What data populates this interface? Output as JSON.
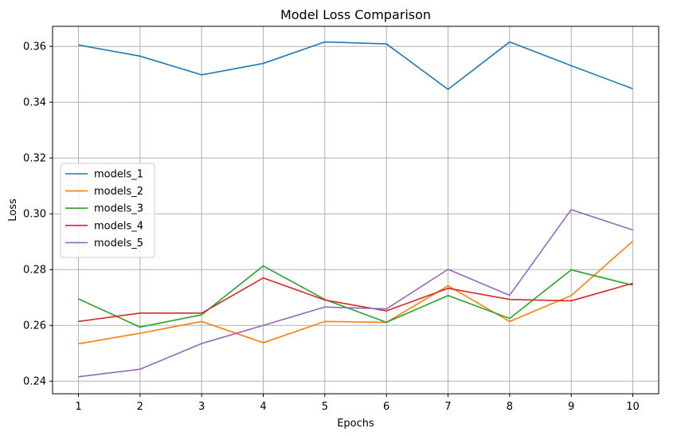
{
  "chart_data": {
    "type": "line",
    "title": "Model Loss Comparison",
    "xlabel": "Epochs",
    "ylabel": "Loss",
    "x": [
      1,
      2,
      3,
      4,
      5,
      6,
      7,
      8,
      9,
      10
    ],
    "xlim": [
      0.58,
      10.42
    ],
    "ylim": [
      0.2355,
      0.3672
    ],
    "yticks": [
      "0.24",
      "0.26",
      "0.28",
      "0.30",
      "0.32",
      "0.34",
      "0.36"
    ],
    "ytick_values": [
      0.24,
      0.26,
      0.28,
      0.3,
      0.32,
      0.34,
      0.36
    ],
    "grid": true,
    "legend_position": "center-left",
    "series": [
      {
        "name": "models_1",
        "color": "#1f77b4",
        "values": [
          0.3605,
          0.3565,
          0.3498,
          0.3539,
          0.3616,
          0.3609,
          0.3446,
          0.3616,
          0.3531,
          0.3448
        ]
      },
      {
        "name": "models_2",
        "color": "#ff7f0e",
        "values": [
          0.2534,
          0.2572,
          0.2614,
          0.2538,
          0.2614,
          0.2611,
          0.2742,
          0.2614,
          0.2707,
          0.2902
        ]
      },
      {
        "name": "models_3",
        "color": "#2ca02c",
        "values": [
          0.2695,
          0.2594,
          0.2638,
          0.2813,
          0.2693,
          0.2611,
          0.2707,
          0.2625,
          0.2799,
          0.2744
        ]
      },
      {
        "name": "models_4",
        "color": "#d62728",
        "values": [
          0.2614,
          0.2644,
          0.2644,
          0.277,
          0.2691,
          0.2652,
          0.2733,
          0.2693,
          0.2688,
          0.2751
        ]
      },
      {
        "name": "models_5",
        "color": "#9467bd",
        "values": [
          0.2416,
          0.2443,
          0.2535,
          0.26,
          0.2666,
          0.2659,
          0.2801,
          0.2708,
          0.3015,
          0.2942
        ]
      }
    ]
  }
}
